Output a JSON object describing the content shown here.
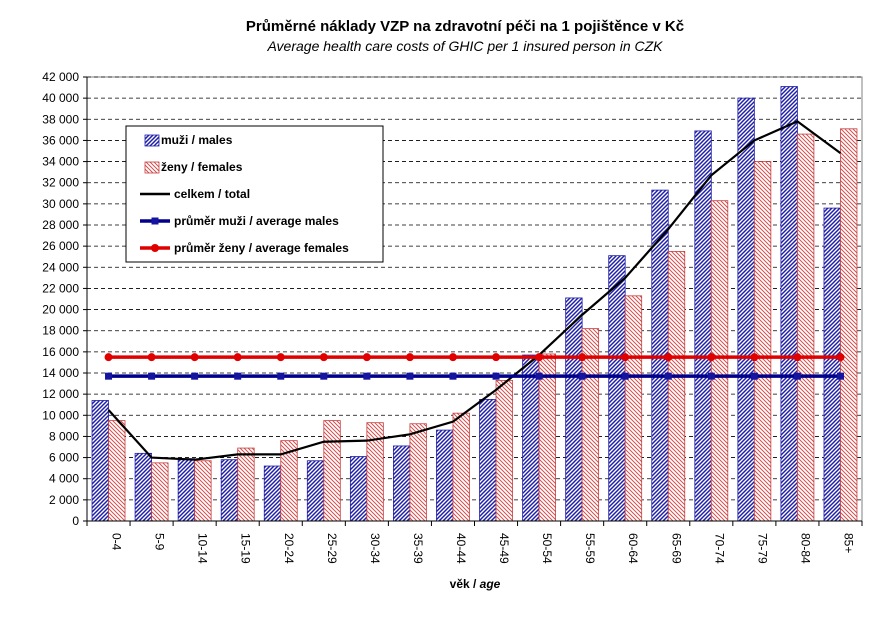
{
  "chart_data": {
    "type": "bar",
    "title": "Průměrné náklady VZP na zdravotní péči na 1 pojištěnce v Kč",
    "subtitle": "Average health care costs of GHIC per 1 insured person in CZK",
    "xlabel": {
      "main": "věk / ",
      "italic": "age"
    },
    "ylim": [
      0,
      42000
    ],
    "ytick_step": 2000,
    "grid": "horizontal-dashed",
    "legend_placement": "top-left",
    "categories": [
      "0-4",
      "5-9",
      "10-14",
      "15-19",
      "20-24",
      "25-29",
      "30-34",
      "35-39",
      "40-44",
      "45-49",
      "50-54",
      "55-59",
      "60-64",
      "65-69",
      "70-74",
      "75-79",
      "80-84",
      "85+"
    ],
    "series": [
      {
        "name": "muži / males",
        "kind": "bar",
        "color": "#1f1fa8",
        "values": [
          11400,
          6400,
          5900,
          5800,
          5200,
          5700,
          6100,
          7100,
          8600,
          11500,
          15700,
          21100,
          25100,
          31300,
          36900,
          40000,
          41100,
          29600
        ]
      },
      {
        "name": "ženy / females",
        "kind": "bar",
        "color": "#c84040",
        "values": [
          9500,
          5500,
          5700,
          6900,
          7600,
          9500,
          9300,
          9200,
          10200,
          13300,
          15800,
          18200,
          21300,
          25500,
          30300,
          34000,
          36600,
          37100
        ]
      },
      {
        "name": "celkem / total",
        "kind": "line",
        "color": "#000000",
        "values": [
          10500,
          6000,
          5800,
          6300,
          6300,
          7500,
          7600,
          8200,
          9400,
          12400,
          15700,
          19500,
          23000,
          27600,
          32700,
          36000,
          37800,
          34800
        ]
      },
      {
        "name": "průměr muži / average males",
        "kind": "line-marker",
        "marker": "square",
        "color": "#00008b",
        "values": [
          13700,
          13700,
          13700,
          13700,
          13700,
          13700,
          13700,
          13700,
          13700,
          13700,
          13700,
          13700,
          13700,
          13700,
          13700,
          13700,
          13700,
          13700
        ]
      },
      {
        "name": "průměr ženy / average females",
        "kind": "line-marker",
        "marker": "circle",
        "color": "#e00000",
        "values": [
          15500,
          15500,
          15500,
          15500,
          15500,
          15500,
          15500,
          15500,
          15500,
          15500,
          15500,
          15500,
          15500,
          15500,
          15500,
          15500,
          15500,
          15500
        ]
      }
    ]
  }
}
